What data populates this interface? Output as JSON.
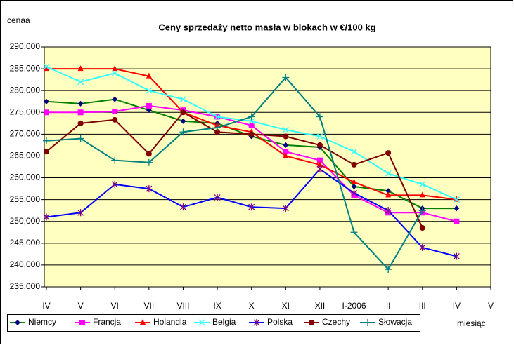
{
  "chart_data": {
    "type": "line",
    "title": "Ceny sprzedaży netto masła w blokach w €/100 kg",
    "y_label": "cenaa",
    "x_label": "miesiąc",
    "categories": [
      "IV",
      "V",
      "VI",
      "VII",
      "VIII",
      "IX",
      "X",
      "XI",
      "XII",
      "I-2006",
      "II",
      "III",
      "IV",
      "V"
    ],
    "ylim": [
      235,
      290
    ],
    "yticks": [
      {
        "value": 235,
        "label": "235,000"
      },
      {
        "value": 240,
        "label": "240,000"
      },
      {
        "value": 245,
        "label": "245,000"
      },
      {
        "value": 250,
        "label": "250,000"
      },
      {
        "value": 255,
        "label": "255,000"
      },
      {
        "value": 260,
        "label": "260,000"
      },
      {
        "value": 265,
        "label": "265,000"
      },
      {
        "value": 270,
        "label": "270,000"
      },
      {
        "value": 275,
        "label": "275,000"
      },
      {
        "value": 280,
        "label": "280,000"
      },
      {
        "value": 285,
        "label": "285,000"
      },
      {
        "value": 290,
        "label": "290,000"
      }
    ],
    "grid": true,
    "legend": "bottom",
    "background": "#ffffc0",
    "series": [
      {
        "name": "Niemcy",
        "color": "#000080",
        "line_color": "#008000",
        "marker": "diamond",
        "values": [
          277.5,
          277,
          278,
          275.5,
          273,
          272.5,
          269.5,
          267.5,
          267,
          258,
          257,
          253,
          253,
          null
        ]
      },
      {
        "name": "Francja",
        "color": "#ff00ff",
        "line_color": "#ff00ff",
        "marker": "square",
        "values": [
          275,
          275,
          275.2,
          276.5,
          275.5,
          274,
          272,
          266,
          264,
          256,
          252,
          252,
          250,
          null
        ]
      },
      {
        "name": "Holandia",
        "color": "#ff0000",
        "line_color": "#ff0000",
        "marker": "triangle",
        "values": [
          285,
          285,
          285,
          283.3,
          275,
          272,
          270.5,
          265,
          263,
          259,
          256,
          256,
          255,
          null
        ]
      },
      {
        "name": "Belgia",
        "color": "#33ffff",
        "line_color": "#33ffff",
        "marker": "x",
        "values": [
          285.5,
          282,
          284,
          280,
          278,
          274,
          273,
          271,
          269.5,
          266,
          261,
          258.5,
          255,
          null
        ]
      },
      {
        "name": "Polska",
        "color": "#800080",
        "line_color": "#0000ff",
        "marker": "star",
        "values": [
          251,
          252,
          258.5,
          257.5,
          253.3,
          255.5,
          253.3,
          253,
          262,
          256.5,
          252.5,
          244,
          242,
          null
        ]
      },
      {
        "name": "Czechy",
        "color": "#800000",
        "line_color": "#800000",
        "marker": "circle",
        "values": [
          266,
          272.5,
          273.3,
          265.5,
          275,
          270.5,
          270,
          269.5,
          267.5,
          263,
          265.7,
          248.5,
          null,
          null
        ]
      },
      {
        "name": "Słowacja",
        "color": "#008080",
        "line_color": "#008080",
        "marker": "plus",
        "values": [
          268.5,
          269,
          264,
          263.5,
          270.5,
          271.5,
          274,
          283,
          274,
          247.5,
          239,
          252.5,
          null,
          null
        ]
      }
    ]
  }
}
